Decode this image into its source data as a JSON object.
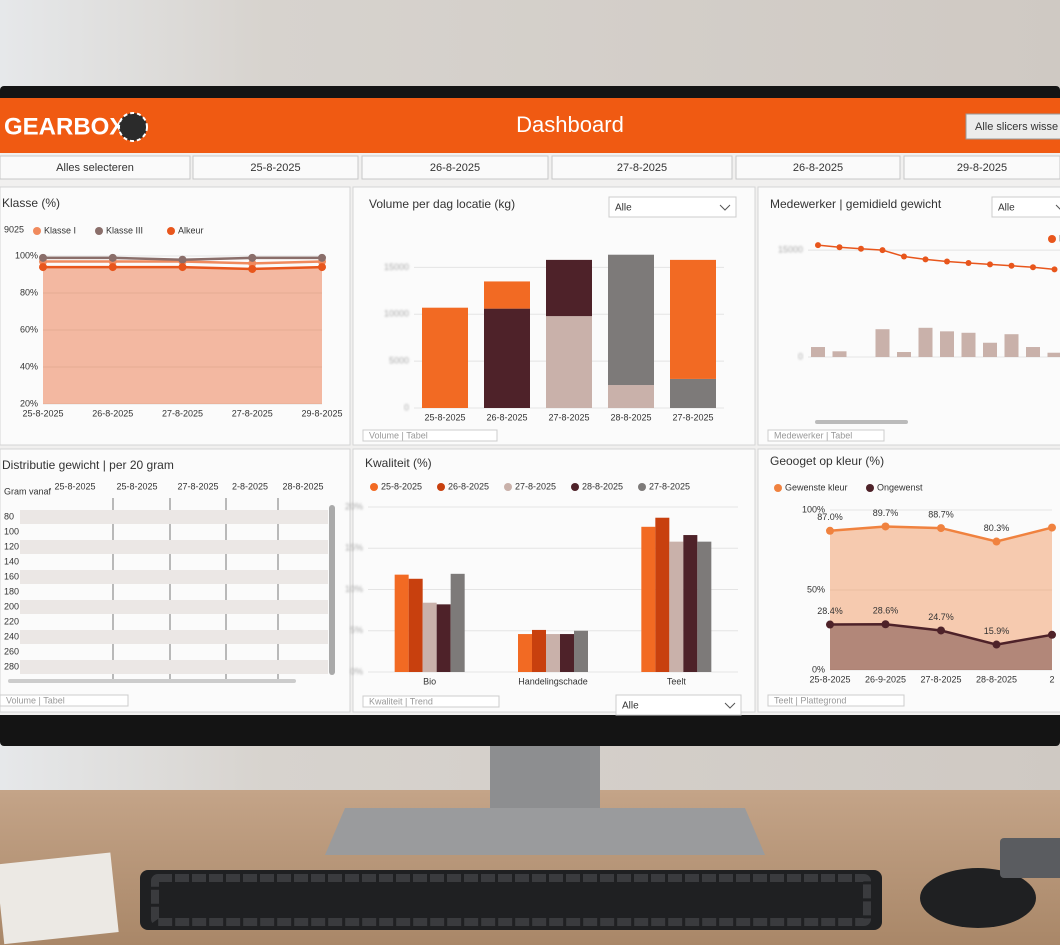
{
  "header": {
    "logo": "GEARBOX",
    "title": "Dashboard",
    "button": "Alle slicers wisse"
  },
  "slicers": [
    "Alles selecteren",
    "25-8-2025",
    "26-8-2025",
    "27-8-2025",
    "26-8-2025",
    "29-8-2025"
  ],
  "chart_data": [
    {
      "type": "line",
      "title": "Klasse (%)",
      "annotation": "9025",
      "categories": [
        "25-8-2025",
        "26-8-2025",
        "27-8-2025",
        "27-8-2025",
        "29-8-2025"
      ],
      "series": [
        {
          "name": "Klasse I",
          "color": "#f08a5d",
          "values": [
            97,
            97,
            97,
            96,
            97
          ]
        },
        {
          "name": "Klasse III",
          "color": "#8a6e6a",
          "values": [
            99,
            99,
            98,
            99,
            99
          ]
        },
        {
          "name": "Alkeur",
          "color": "#e8561c",
          "values": [
            94,
            94,
            94,
            93,
            94
          ],
          "area": true
        }
      ],
      "ylim": [
        20,
        100
      ],
      "yticks": [
        {
          "value": 100,
          "label": "100%"
        },
        {
          "value": 80,
          "label": "80%"
        },
        {
          "value": 60,
          "label": "60%"
        },
        {
          "value": 40,
          "label": "40%"
        },
        {
          "value": 20,
          "label": "20%"
        }
      ]
    },
    {
      "type": "stacked_bar",
      "title": "Volume per dag locatie (kg)",
      "dropdown": "Alle",
      "footer": "Volume | Tabel",
      "categories": [
        "25-8-2025",
        "26-8-2025",
        "27-8-2025",
        "28-8-2025",
        "27-8-2025"
      ],
      "series": [
        {
          "color": "#c9b1aa",
          "values": [
            0,
            0,
            9800,
            2450,
            0
          ]
        },
        {
          "color": "#4e2229",
          "values": [
            0,
            10600,
            6000,
            0,
            0
          ]
        },
        {
          "color": "#7d7a79",
          "values": [
            0,
            0,
            0,
            13900,
            3100
          ]
        },
        {
          "color": "#f26a23",
          "values": [
            10700,
            2900,
            0,
            0,
            12700
          ]
        }
      ],
      "ylim": [
        0,
        16000
      ],
      "yticks": [
        0,
        5000,
        10000,
        15000
      ]
    },
    {
      "type": "bar_line",
      "title": "Medewerker | gemidield gewicht",
      "dropdown": "Alle",
      "footer": "Medewerker | Tabel",
      "categories": [
        null,
        null,
        null,
        null,
        null,
        null,
        null,
        null,
        null,
        null,
        null,
        null
      ],
      "series": [
        {
          "name": "Kla",
          "color": "#e8561c",
          "kind": "line",
          "values": [
            15700,
            15400,
            15200,
            15000,
            14100,
            13700,
            13400,
            13200,
            13000,
            12800,
            12600,
            12300
          ]
        },
        {
          "color": "#c9b1aa",
          "kind": "bar",
          "values": [
            1400,
            800,
            0,
            3900,
            700,
            4100,
            3600,
            3400,
            2000,
            3200,
            1400,
            600
          ]
        }
      ],
      "ylim": [
        0,
        16000
      ],
      "yticks": [
        0,
        15000
      ]
    },
    {
      "type": "table",
      "title": "Distributie gewicht | per 20 gram",
      "footer": "Volume | Tabel",
      "row_header": "Gram vanaf",
      "columns": [
        "25-8-2025",
        "25-8-2025",
        "27-8-2025",
        "2-8-2025",
        "28-8-2025"
      ],
      "rows": [
        80,
        100,
        120,
        140,
        160,
        180,
        200,
        220,
        240,
        260,
        280
      ]
    },
    {
      "type": "grouped_bar",
      "title": "Kwaliteit (%)",
      "dropdown": "Alle",
      "footer": "Kwaliteit | Trend",
      "categories": [
        "Bio",
        "Handelingschade",
        "Teelt"
      ],
      "series": [
        {
          "name": "25-8-2025",
          "color": "#f26a23",
          "values": [
            11.8,
            4.6,
            17.6
          ]
        },
        {
          "name": "26-8-2025",
          "color": "#c8400e",
          "values": [
            11.3,
            5.1,
            18.7
          ]
        },
        {
          "name": "27-8-2025",
          "color": "#c9b1aa",
          "values": [
            8.4,
            4.6,
            15.8
          ]
        },
        {
          "name": "28-8-2025",
          "color": "#4e2229",
          "values": [
            8.2,
            4.6,
            16.6
          ]
        },
        {
          "name": "27-8-2025",
          "color": "#7d7a79",
          "values": [
            11.9,
            5.0,
            15.8
          ]
        }
      ],
      "ylim": [
        0,
        20
      ],
      "yticks": [
        {
          "value": 0,
          "label": "0%"
        },
        {
          "value": 5,
          "label": "5%"
        },
        {
          "value": 10,
          "label": "10%"
        },
        {
          "value": 15,
          "label": "15%"
        },
        {
          "value": 20,
          "label": "20%"
        }
      ]
    },
    {
      "type": "line",
      "title": "Geooget op kleur (%)",
      "footer": "Teelt | Plattegrond",
      "categories": [
        "25-8-2025",
        "26-9-2025",
        "27-8-2025",
        "28-8-2025",
        "2"
      ],
      "series": [
        {
          "name": "Gewenste kleur",
          "color": "#f0823f",
          "values": [
            87.0,
            89.7,
            88.7,
            80.3,
            89
          ],
          "value_labels": [
            "87.0%",
            "89.7%",
            "88.7%",
            "80.3%",
            null
          ],
          "area": true
        },
        {
          "name": "Ongewenst",
          "color": "#4e2229",
          "values": [
            28.4,
            28.6,
            24.7,
            15.9,
            22
          ],
          "value_labels": [
            "28.4%",
            "28.6%",
            "24.7%",
            "15.9%",
            null
          ],
          "area": true
        }
      ],
      "ylim": [
        0,
        100
      ],
      "yticks": [
        {
          "value": 100,
          "label": "100%"
        },
        {
          "value": 50,
          "label": "50%"
        },
        {
          "value": 0,
          "label": "0%"
        }
      ]
    }
  ]
}
